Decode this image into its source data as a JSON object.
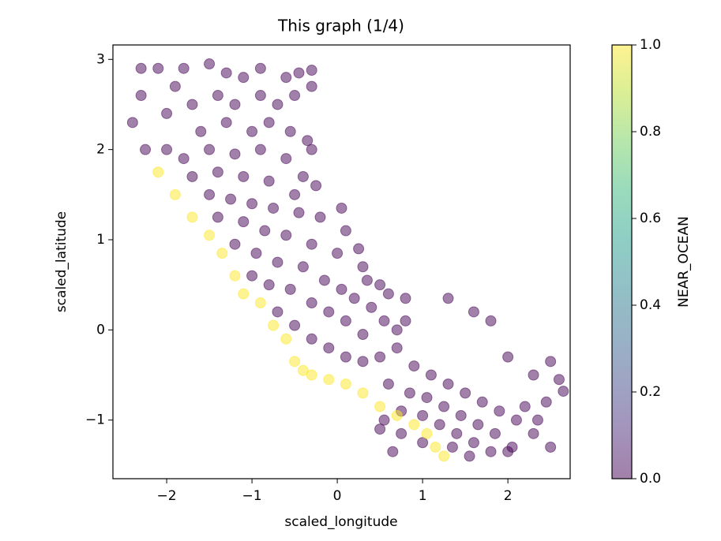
{
  "chart_data": {
    "type": "scatter",
    "title": "This graph (1/4)",
    "x_label": "scaled_longitude",
    "y_label": "scaled_latitude",
    "colorbar_label": "NEAR_OCEAN",
    "colormap": "viridis",
    "alpha": 0.5,
    "xlim": [
      -2.63,
      2.73
    ],
    "ylim": [
      -1.65,
      3.16
    ],
    "clim": [
      0,
      1
    ],
    "xticks": [
      {
        "value": -2,
        "label": "−2"
      },
      {
        "value": -1,
        "label": "−1"
      },
      0,
      1,
      2
    ],
    "yticks": [
      {
        "value": -1,
        "label": "−1"
      },
      0,
      1,
      2,
      3
    ],
    "cticks": [
      {
        "value": 0,
        "label": "0.0"
      },
      0.2,
      0.4,
      0.6,
      0.8,
      {
        "value": 1,
        "label": "1.0"
      }
    ],
    "x": [
      -2.1,
      -1.9,
      -1.8,
      -1.5,
      -1.3,
      -1.1,
      -0.9,
      -0.6,
      -0.45,
      -0.3,
      -0.3,
      -2.0,
      -1.7,
      -1.4,
      -1.2,
      -0.9,
      -0.7,
      -0.5,
      -1.6,
      -1.3,
      -1.0,
      -0.8,
      -0.55,
      -0.35,
      -2.0,
      -1.8,
      -1.5,
      -1.2,
      -0.9,
      -0.6,
      -0.3,
      -0.4,
      -1.7,
      -1.4,
      -1.1,
      -0.8,
      -0.5,
      -0.25,
      -1.5,
      -1.25,
      -1.0,
      -0.75,
      -0.45,
      -0.2,
      0.05,
      0.1,
      -1.4,
      -1.1,
      -0.85,
      -0.6,
      -0.3,
      0.0,
      0.25,
      0.3,
      0.35,
      0.5,
      0.6,
      0.8,
      -1.2,
      -0.95,
      -0.7,
      -0.4,
      -0.15,
      0.05,
      0.2,
      0.4,
      0.55,
      0.7,
      -1.0,
      -0.8,
      -0.55,
      -0.3,
      -0.1,
      0.1,
      0.3,
      -0.7,
      -0.5,
      -0.3,
      -0.1,
      0.1,
      0.3,
      0.5,
      0.7,
      0.9,
      1.1,
      1.3,
      1.5,
      1.7,
      1.9,
      2.1,
      0.6,
      0.85,
      1.05,
      1.25,
      1.45,
      1.65,
      1.85,
      2.05,
      0.75,
      1.0,
      1.2,
      1.4,
      1.6,
      1.8,
      2.0,
      1.35,
      1.55,
      1.3,
      1.6,
      1.8,
      2.0,
      2.3,
      2.5,
      2.6,
      2.65,
      2.45,
      2.35,
      2.3,
      2.5,
      2.2,
      0.55,
      0.5,
      0.75,
      1.0,
      0.65,
      0.8,
      -2.3,
      -2.3,
      -2.4,
      -2.25,
      -2.1,
      -1.9,
      -1.7,
      -1.5,
      -1.35,
      -1.2,
      -1.1,
      -0.9,
      -0.75,
      -0.6,
      -0.5,
      -0.4,
      -0.3,
      -0.1,
      0.1,
      0.3,
      0.5,
      0.7,
      0.9,
      1.05,
      1.15,
      1.25
    ],
    "y": [
      2.9,
      2.7,
      2.9,
      2.95,
      2.85,
      2.8,
      2.9,
      2.8,
      2.85,
      2.88,
      2.7,
      2.4,
      2.5,
      2.6,
      2.5,
      2.6,
      2.5,
      2.6,
      2.2,
      2.3,
      2.2,
      2.3,
      2.2,
      2.1,
      2.0,
      1.9,
      2.0,
      1.95,
      2.0,
      1.9,
      2.0,
      1.7,
      1.7,
      1.75,
      1.7,
      1.65,
      1.5,
      1.6,
      1.5,
      1.45,
      1.4,
      1.35,
      1.3,
      1.25,
      1.35,
      1.1,
      1.25,
      1.2,
      1.1,
      1.05,
      0.95,
      0.85,
      0.9,
      0.7,
      0.55,
      0.5,
      0.4,
      0.35,
      0.95,
      0.85,
      0.75,
      0.7,
      0.55,
      0.45,
      0.35,
      0.25,
      0.1,
      0.0,
      0.6,
      0.5,
      0.45,
      0.3,
      0.2,
      0.1,
      -0.05,
      0.2,
      0.05,
      -0.1,
      -0.2,
      -0.3,
      -0.35,
      -0.3,
      -0.2,
      -0.4,
      -0.5,
      -0.6,
      -0.7,
      -0.8,
      -0.9,
      -1.0,
      -0.6,
      -0.7,
      -0.75,
      -0.85,
      -0.95,
      -1.05,
      -1.15,
      -1.3,
      -0.9,
      -0.95,
      -1.05,
      -1.15,
      -1.25,
      -1.35,
      -1.35,
      -1.3,
      -1.4,
      0.35,
      0.2,
      0.1,
      -0.3,
      -0.5,
      -0.35,
      -0.55,
      -0.68,
      -0.8,
      -1.0,
      -1.15,
      -1.3,
      -0.85,
      -1.0,
      -1.1,
      -1.15,
      -1.25,
      -1.35,
      0.1,
      2.9,
      2.6,
      2.3,
      2.0,
      1.75,
      1.5,
      1.25,
      1.05,
      0.85,
      0.6,
      0.4,
      0.3,
      0.05,
      -0.1,
      -0.35,
      -0.45,
      -0.5,
      -0.55,
      -0.6,
      -0.7,
      -0.85,
      -0.95,
      -1.05,
      -1.15,
      -1.3,
      -1.4
    ],
    "c": [
      0,
      0,
      0,
      0,
      0,
      0,
      0,
      0,
      0,
      0,
      0,
      0,
      0,
      0,
      0,
      0,
      0,
      0,
      0,
      0,
      0,
      0,
      0,
      0,
      0,
      0,
      0,
      0,
      0,
      0,
      0,
      0,
      0,
      0,
      0,
      0,
      0,
      0,
      0,
      0,
      0,
      0,
      0,
      0,
      0,
      0,
      0,
      0,
      0,
      0,
      0,
      0,
      0,
      0,
      0,
      0,
      0,
      0,
      0,
      0,
      0,
      0,
      0,
      0,
      0,
      0,
      0,
      0,
      0,
      0,
      0,
      0,
      0,
      0,
      0,
      0,
      0,
      0,
      0,
      0,
      0,
      0,
      0,
      0,
      0,
      0,
      0,
      0,
      0,
      0,
      0,
      0,
      0,
      0,
      0,
      0,
      0,
      0,
      0,
      0,
      0,
      0,
      0,
      0,
      0,
      0,
      0,
      0,
      0,
      0,
      0,
      0,
      0,
      0,
      0,
      0,
      0,
      0,
      0,
      0,
      0,
      0,
      0,
      0,
      0,
      0,
      0,
      0,
      0,
      0,
      1,
      1,
      1,
      1,
      1,
      1,
      1,
      1,
      1,
      1,
      1,
      1,
      1,
      1,
      1,
      1,
      1,
      1,
      1,
      1,
      1,
      1,
      1,
      1,
      1,
      1
    ]
  }
}
